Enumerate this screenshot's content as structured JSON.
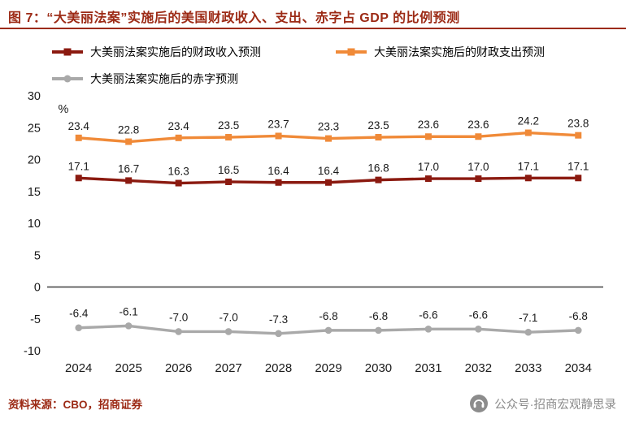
{
  "chart_data": {
    "type": "line",
    "title": "图 7：“大美丽法案”实施后的美国财政收入、支出、赤字占 GDP 的比例预测",
    "x": [
      "2024",
      "2025",
      "2026",
      "2027",
      "2028",
      "2029",
      "2030",
      "2031",
      "2032",
      "2033",
      "2034"
    ],
    "series": [
      {
        "name": "大美丽法案实施后的财政收入预测",
        "color": "#8B1A10",
        "marker": "square",
        "values": [
          17.1,
          16.7,
          16.3,
          16.5,
          16.4,
          16.4,
          16.8,
          17.0,
          17.0,
          17.1,
          17.1
        ]
      },
      {
        "name": "大美丽法案实施后的财政支出预测",
        "color": "#F08A38",
        "marker": "square",
        "values": [
          23.4,
          22.8,
          23.4,
          23.5,
          23.7,
          23.3,
          23.5,
          23.6,
          23.6,
          24.2,
          23.8
        ]
      },
      {
        "name": "大美丽法案实施后的赤字预测",
        "color": "#A9A9A9",
        "marker": "circle",
        "values": [
          -6.4,
          -6.1,
          -7.0,
          -7.0,
          -7.3,
          -6.8,
          -6.8,
          -6.6,
          -6.6,
          -7.1,
          -6.8
        ]
      }
    ],
    "xlabel": "",
    "ylabel": "%",
    "ylim": [
      -10,
      30
    ],
    "yticks": [
      30,
      25,
      20,
      15,
      10,
      5,
      0,
      -5,
      -10
    ],
    "data_labels": true,
    "grid": false,
    "legend_position": "top"
  },
  "colors": {
    "accent_red": "#9C2A15",
    "axis_text": "#1A1A1A",
    "zero_line": "#3F3F3F",
    "wechat_gray": "#8C8C8C"
  },
  "footer": {
    "source": "资料来源：CBO，招商证券",
    "wechat": "公众号·招商宏观静思录"
  }
}
